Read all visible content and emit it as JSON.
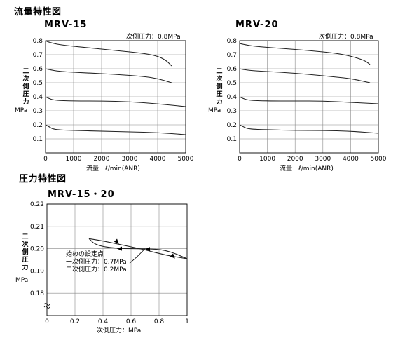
{
  "sections": {
    "flow_title": "流量特性図",
    "pressure_title": "圧力特性図"
  },
  "flow_label": {
    "ylabel_chars": [
      "二",
      "次",
      "側",
      "圧",
      "力"
    ],
    "unit": "MPa",
    "xlabel": "流量　ℓ/min(ANR)"
  },
  "pressure_label": {
    "ylabel_chars": [
      "二",
      "次",
      "側",
      "圧",
      "力"
    ],
    "unit": "MPa",
    "xlabel": "一次側圧力：MPa",
    "annotation": [
      "始めの設定点",
      "一次側圧力：0.7MPa",
      "二次側圧力：0.2MPa"
    ]
  },
  "chart_data": [
    {
      "type": "line",
      "title": "MRV-15",
      "annotation": "一次側圧力：0.8MPa",
      "xlabel": "流量　ℓ/min(ANR)",
      "ylabel": "二次側圧力 MPa",
      "xlim": [
        0,
        5000
      ],
      "ylim": [
        0,
        0.8
      ],
      "xticks": [
        "0",
        "1000",
        "2000",
        "3000",
        "4000",
        "5000"
      ],
      "yticks": [
        "0.1",
        "0.2",
        "0.3",
        "0.4",
        "0.5",
        "0.6",
        "0.7",
        "0.8"
      ],
      "grid": true,
      "series": [
        {
          "x": [
            0,
            100,
            500,
            1500,
            2500,
            3500,
            4000,
            4300,
            4500
          ],
          "y": [
            0.8,
            0.79,
            0.77,
            0.75,
            0.73,
            0.71,
            0.69,
            0.66,
            0.62
          ]
        },
        {
          "x": [
            0,
            100,
            500,
            1500,
            2500,
            3500,
            4000,
            4500
          ],
          "y": [
            0.6,
            0.595,
            0.58,
            0.57,
            0.56,
            0.545,
            0.53,
            0.5
          ]
        },
        {
          "x": [
            0,
            100,
            300,
            1000,
            2000,
            3000,
            4000,
            5000
          ],
          "y": [
            0.4,
            0.39,
            0.375,
            0.37,
            0.37,
            0.365,
            0.35,
            0.33
          ]
        },
        {
          "x": [
            0,
            100,
            300,
            1000,
            2000,
            3000,
            4000,
            5000
          ],
          "y": [
            0.2,
            0.19,
            0.165,
            0.16,
            0.155,
            0.15,
            0.145,
            0.13
          ]
        }
      ]
    },
    {
      "type": "line",
      "title": "MRV-20",
      "annotation": "一次側圧力：0.8MPa",
      "xlabel": "流量　ℓ/min(ANR)",
      "ylabel": "二次側圧力 MPa",
      "xlim": [
        0,
        5000
      ],
      "ylim": [
        0,
        0.8
      ],
      "xticks": [
        "0",
        "1000",
        "2000",
        "3000",
        "4000",
        "5000"
      ],
      "yticks": [
        "0.1",
        "0.2",
        "0.3",
        "0.4",
        "0.5",
        "0.6",
        "0.7",
        "0.8"
      ],
      "grid": true,
      "series": [
        {
          "x": [
            0,
            100,
            500,
            1500,
            2500,
            3500,
            4000,
            4500,
            4700
          ],
          "y": [
            0.78,
            0.775,
            0.76,
            0.745,
            0.73,
            0.71,
            0.69,
            0.66,
            0.63
          ]
        },
        {
          "x": [
            0,
            100,
            500,
            1500,
            2500,
            3500,
            4000,
            4700
          ],
          "y": [
            0.6,
            0.595,
            0.585,
            0.575,
            0.56,
            0.54,
            0.53,
            0.5
          ]
        },
        {
          "x": [
            0,
            100,
            300,
            1000,
            2000,
            3000,
            4000,
            5000
          ],
          "y": [
            0.4,
            0.39,
            0.375,
            0.37,
            0.37,
            0.37,
            0.36,
            0.35
          ]
        },
        {
          "x": [
            0,
            100,
            300,
            1000,
            2000,
            3000,
            4000,
            5000
          ],
          "y": [
            0.2,
            0.19,
            0.17,
            0.165,
            0.16,
            0.16,
            0.155,
            0.14
          ]
        }
      ]
    },
    {
      "type": "line",
      "title": "MRV-15・20",
      "xlabel": "一次側圧力：MPa",
      "ylabel": "二次側圧力 MPa",
      "xlim": [
        0,
        1
      ],
      "ylim": [
        0.17,
        0.22
      ],
      "xticks": [
        "0",
        "0.2",
        "0.4",
        "0.6",
        "0.8",
        "1"
      ],
      "yticks": [
        "0.18",
        "0.19",
        "0.20",
        "0.21",
        "0.22"
      ],
      "grid": true,
      "series": [
        {
          "x": [
            0.3,
            0.4,
            0.55,
            0.7,
            0.85,
            1.0
          ],
          "y": [
            0.2045,
            0.2035,
            0.2015,
            0.1995,
            0.197,
            0.1955
          ]
        },
        {
          "x": [
            1.0,
            0.85,
            0.7,
            0.5,
            0.35,
            0.3
          ],
          "y": [
            0.1955,
            0.1995,
            0.2,
            0.2,
            0.2015,
            0.2045
          ]
        }
      ]
    }
  ]
}
